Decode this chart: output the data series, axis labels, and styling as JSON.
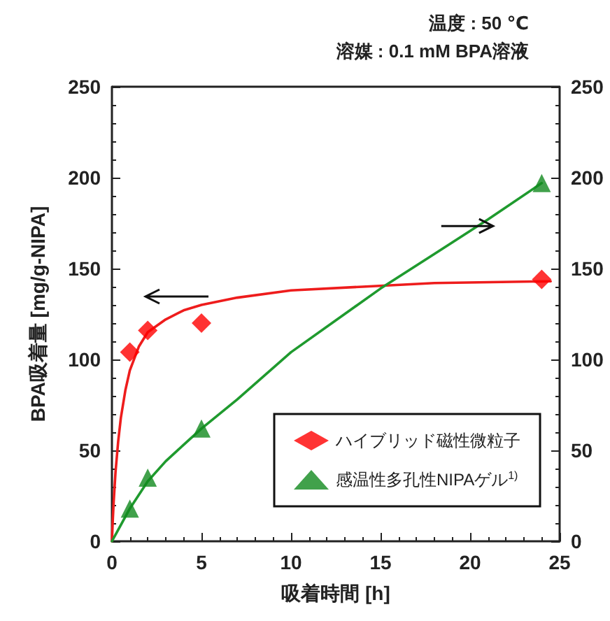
{
  "chart_data": {
    "type": "scatter",
    "xlabel": "吸着時間 [h]",
    "ylabel": "BPA吸着量 [mg/g-NIPA]",
    "annotations": [
      "温度 : 50 ℃",
      "溶媒 : 0.1 mM BPA溶液"
    ],
    "xlim": [
      0,
      25
    ],
    "xticks": [
      0,
      5,
      10,
      15,
      20,
      25
    ],
    "ylim": [
      0,
      250
    ],
    "yticks": [
      0,
      50,
      100,
      150,
      200,
      250
    ],
    "y2lim": [
      0,
      250
    ],
    "y2ticks": [
      0,
      50,
      100,
      150,
      200,
      250
    ],
    "grid": false,
    "legend": "bottom right",
    "line_style": "solid",
    "series": [
      {
        "type": "line",
        "color": "#ee1c1c",
        "x": [
          0,
          0.05,
          0.1,
          0.2,
          0.35,
          0.5,
          0.75,
          1,
          1.5,
          2,
          3,
          4,
          5,
          7,
          10,
          14,
          18,
          24.5
        ],
        "values": [
          0,
          12,
          22,
          38,
          55,
          68,
          83,
          94,
          107,
          115,
          122,
          127,
          130,
          134,
          138,
          140,
          142,
          143
        ]
      },
      {
        "type": "line",
        "axis": "y2",
        "color": "#1f9a2e",
        "x": [
          0,
          0.5,
          1,
          2,
          3,
          4,
          5,
          7,
          10,
          13,
          15,
          18,
          21,
          24
        ],
        "values": [
          0,
          9,
          18,
          33,
          44,
          53,
          62,
          78,
          104,
          125,
          139,
          158,
          177,
          197
        ]
      },
      {
        "name": "ハイブリッド磁性微粒子",
        "color": "#ff0000",
        "marker": "diamond",
        "x": [
          1,
          2,
          5,
          24
        ],
        "values": [
          104,
          116,
          120,
          144
        ]
      },
      {
        "axis": "y2",
        "name": "感温性多孔性NIPAゲル$^{1)}$",
        "color": "#118a1e",
        "marker": "triangle",
        "x": [
          1,
          2,
          5,
          24
        ],
        "values": [
          18,
          35,
          62,
          197
        ]
      }
    ]
  }
}
